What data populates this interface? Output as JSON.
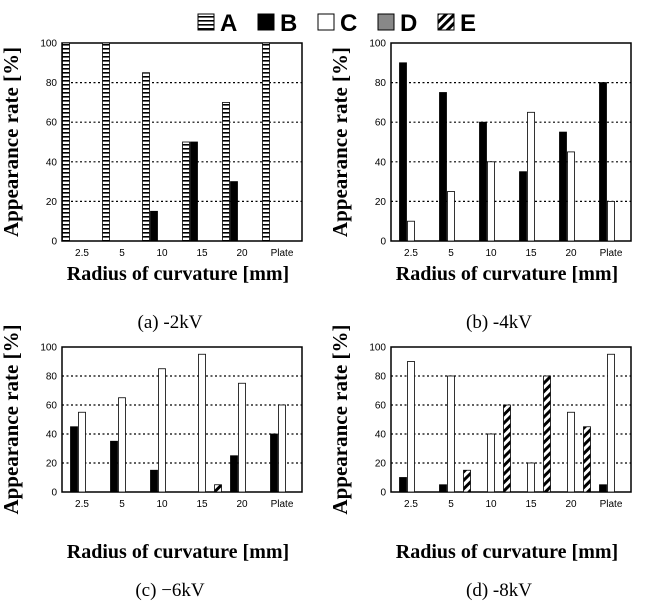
{
  "legend": [
    {
      "name": "A",
      "pattern": "hstripe"
    },
    {
      "name": "B",
      "pattern": "solid"
    },
    {
      "name": "C",
      "pattern": "white"
    },
    {
      "name": "D",
      "pattern": "gray"
    },
    {
      "name": "E",
      "pattern": "diag"
    }
  ],
  "colors": {
    "B": "#000000",
    "C": "#ffffff",
    "D": "#888888",
    "A_stripe": "#000000",
    "E_stripe": "#000000"
  },
  "chart_data": [
    {
      "type": "bar",
      "caption": "(a)  -2kV",
      "ylabel": "Appearance  rate  [%]",
      "xlabel": "Radius of curvature  [mm]",
      "ylim": [
        0,
        100
      ],
      "yticks": [
        0,
        20,
        40,
        60,
        80,
        100
      ],
      "grid": "horizontal dotted",
      "categories": [
        "2.5",
        "5",
        "10",
        "15",
        "20",
        "Plate"
      ],
      "series": [
        {
          "name": "A",
          "values": [
            100,
            100,
            85,
            50,
            70,
            100
          ]
        },
        {
          "name": "B",
          "values": [
            0,
            0,
            15,
            50,
            30,
            0
          ]
        },
        {
          "name": "C",
          "values": [
            0,
            0,
            0,
            0,
            0,
            0
          ]
        },
        {
          "name": "D",
          "values": [
            0,
            0,
            0,
            0,
            0,
            0
          ]
        },
        {
          "name": "E",
          "values": [
            0,
            0,
            0,
            0,
            0,
            0
          ]
        }
      ]
    },
    {
      "type": "bar",
      "caption": "(b)  -4kV",
      "ylabel": "Appearance  rate  [%]",
      "xlabel": "Radius of curvature  [mm]",
      "ylim": [
        0,
        100
      ],
      "yticks": [
        0,
        20,
        40,
        60,
        80,
        100
      ],
      "grid": "horizontal dotted",
      "categories": [
        "2.5",
        "5",
        "10",
        "15",
        "20",
        "Plate"
      ],
      "series": [
        {
          "name": "A",
          "values": [
            0,
            0,
            0,
            0,
            0,
            0
          ]
        },
        {
          "name": "B",
          "values": [
            90,
            75,
            60,
            35,
            55,
            80
          ]
        },
        {
          "name": "C",
          "values": [
            10,
            25,
            40,
            65,
            45,
            20
          ]
        },
        {
          "name": "D",
          "values": [
            0,
            0,
            0,
            0,
            0,
            0
          ]
        },
        {
          "name": "E",
          "values": [
            0,
            0,
            0,
            0,
            0,
            0
          ]
        }
      ]
    },
    {
      "type": "bar",
      "caption": "(c)  −6kV",
      "ylabel": "Appearance  rate  [%]",
      "xlabel": "Radius of curvature  [mm]",
      "ylim": [
        0,
        100
      ],
      "yticks": [
        0,
        20,
        40,
        60,
        80,
        100
      ],
      "grid": "horizontal dotted",
      "categories": [
        "2.5",
        "5",
        "10",
        "15",
        "20",
        "Plate"
      ],
      "series": [
        {
          "name": "A",
          "values": [
            0,
            0,
            0,
            0,
            0,
            0
          ]
        },
        {
          "name": "B",
          "values": [
            45,
            35,
            15,
            0,
            25,
            40
          ]
        },
        {
          "name": "C",
          "values": [
            55,
            65,
            85,
            95,
            75,
            60
          ]
        },
        {
          "name": "D",
          "values": [
            0,
            0,
            0,
            0,
            0,
            0
          ]
        },
        {
          "name": "E",
          "values": [
            0,
            0,
            0,
            5,
            0,
            0
          ]
        }
      ]
    },
    {
      "type": "bar",
      "caption": "(d)  -8kV",
      "ylabel": "Appearance  rate  [%]",
      "xlabel": "Radius of curvature  [mm]",
      "ylim": [
        0,
        100
      ],
      "yticks": [
        0,
        20,
        40,
        60,
        80,
        100
      ],
      "grid": "horizontal dotted",
      "categories": [
        "2.5",
        "5",
        "10",
        "15",
        "20",
        "Plate"
      ],
      "series": [
        {
          "name": "A",
          "values": [
            0,
            0,
            0,
            0,
            0,
            0
          ]
        },
        {
          "name": "B",
          "values": [
            10,
            5,
            0,
            0,
            0,
            5
          ]
        },
        {
          "name": "C",
          "values": [
            90,
            80,
            40,
            20,
            55,
            95
          ]
        },
        {
          "name": "D",
          "values": [
            0,
            0,
            0,
            0,
            0,
            0
          ]
        },
        {
          "name": "E",
          "values": [
            0,
            15,
            60,
            80,
            45,
            0
          ]
        }
      ]
    }
  ]
}
